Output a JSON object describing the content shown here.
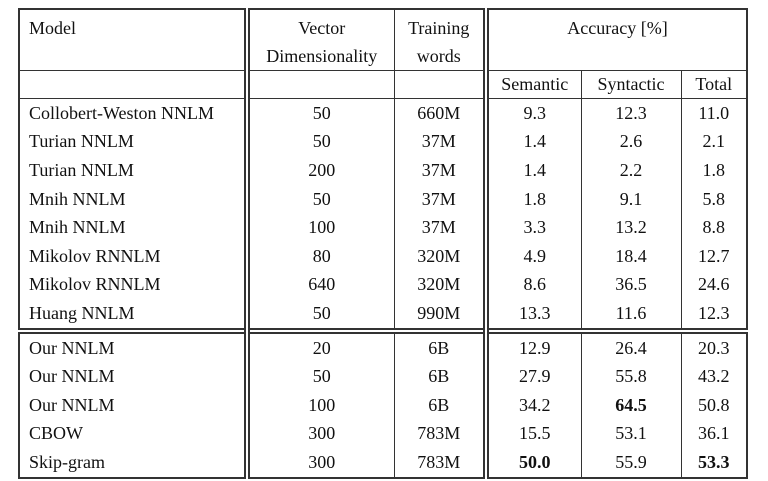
{
  "table": {
    "border_color": "#333333",
    "text_color": "#111111",
    "background": "#ffffff",
    "headers": {
      "model": "Model",
      "vector_dimensionality": [
        "Vector",
        "Dimensionality"
      ],
      "training_words": [
        "Training",
        "words"
      ],
      "accuracy_group": "Accuracy [%]",
      "semantic": "Semantic",
      "syntactic": "Syntactic",
      "total": "Total"
    },
    "rows": [
      {
        "model": "Collobert-Weston NNLM",
        "dim": "50",
        "words": "660M",
        "semantic": "9.3",
        "syntactic": "12.3",
        "total": "11.0"
      },
      {
        "model": "Turian NNLM",
        "dim": "50",
        "words": "37M",
        "semantic": "1.4",
        "syntactic": "2.6",
        "total": "2.1"
      },
      {
        "model": "Turian NNLM",
        "dim": "200",
        "words": "37M",
        "semantic": "1.4",
        "syntactic": "2.2",
        "total": "1.8"
      },
      {
        "model": "Mnih NNLM",
        "dim": "50",
        "words": "37M",
        "semantic": "1.8",
        "syntactic": "9.1",
        "total": "5.8"
      },
      {
        "model": "Mnih NNLM",
        "dim": "100",
        "words": "37M",
        "semantic": "3.3",
        "syntactic": "13.2",
        "total": "8.8"
      },
      {
        "model": "Mikolov RNNLM",
        "dim": "80",
        "words": "320M",
        "semantic": "4.9",
        "syntactic": "18.4",
        "total": "12.7"
      },
      {
        "model": "Mikolov RNNLM",
        "dim": "640",
        "words": "320M",
        "semantic": "8.6",
        "syntactic": "36.5",
        "total": "24.6"
      },
      {
        "model": "Huang NNLM",
        "dim": "50",
        "words": "990M",
        "semantic": "13.3",
        "syntactic": "11.6",
        "total": "12.3"
      },
      {
        "model": "Our NNLM",
        "dim": "20",
        "words": "6B",
        "semantic": "12.9",
        "syntactic": "26.4",
        "total": "20.3"
      },
      {
        "model": "Our NNLM",
        "dim": "50",
        "words": "6B",
        "semantic": "27.9",
        "syntactic": "55.8",
        "total": "43.2"
      },
      {
        "model": "Our NNLM",
        "dim": "100",
        "words": "6B",
        "semantic": "34.2",
        "syntactic": "64.5",
        "total": "50.8"
      },
      {
        "model": "CBOW",
        "dim": "300",
        "words": "783M",
        "semantic": "15.5",
        "syntactic": "53.1",
        "total": "36.1"
      },
      {
        "model": "Skip-gram",
        "dim": "300",
        "words": "783M",
        "semantic": "50.0",
        "syntactic": "55.9",
        "total": "53.3"
      }
    ],
    "emphasis": [
      {
        "row": 10,
        "col": "syntactic"
      },
      {
        "row": 12,
        "col": "semantic"
      },
      {
        "row": 12,
        "col": "total"
      }
    ],
    "group_start_row": 8
  }
}
